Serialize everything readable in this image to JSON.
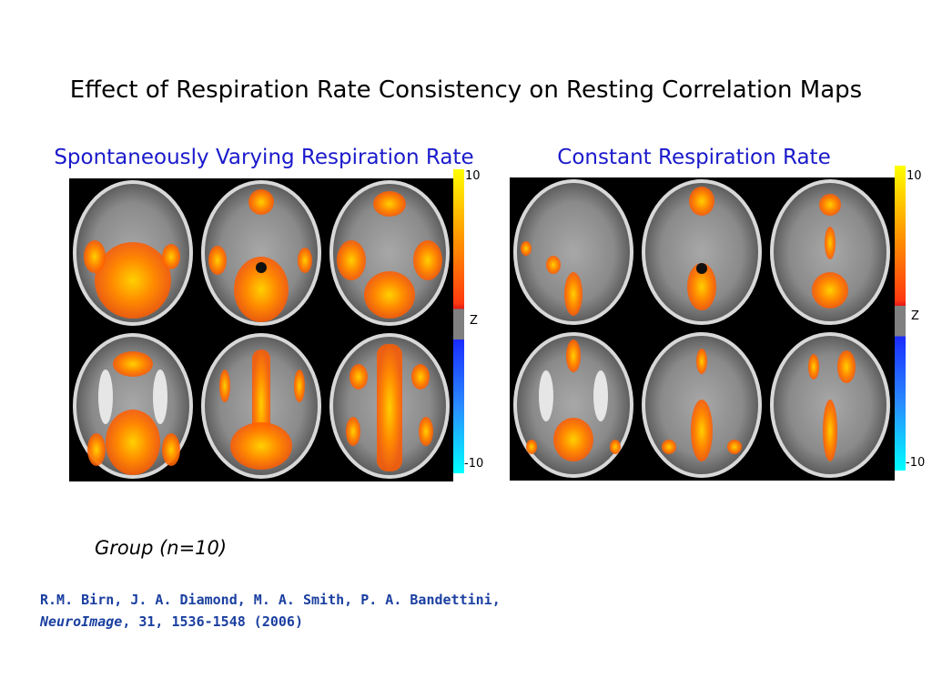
{
  "title": "Effect of Respiration Rate Consistency on Resting Correlation Maps",
  "panels": [
    {
      "title": "Spontaneously Varying Respiration Rate",
      "colorbar": {
        "max_label": "10",
        "mid_label": "Z",
        "min_label": "-10"
      }
    },
    {
      "title": "Constant Respiration Rate",
      "colorbar": {
        "max_label": "10",
        "mid_label": "Z",
        "min_label": "-10"
      }
    }
  ],
  "group_label": "Group (n=10)",
  "reference": {
    "authors": "R.M. Birn, J. A. Diamond, M. A. Smith, P. A. Bandettini,",
    "journal": "NeuroImage",
    "citation": ", 31, 1536-1548 (2006)"
  },
  "colors": {
    "title_blue": "#1a1acc",
    "reference_blue": "#1a3fa0",
    "colorbar_positive": [
      "#ffff00",
      "#ff7a00",
      "#e8281c"
    ],
    "colorbar_negative": [
      "#1a2cff",
      "#2aa8ff",
      "#00ffff"
    ],
    "colorbar_mid": "#808080"
  }
}
